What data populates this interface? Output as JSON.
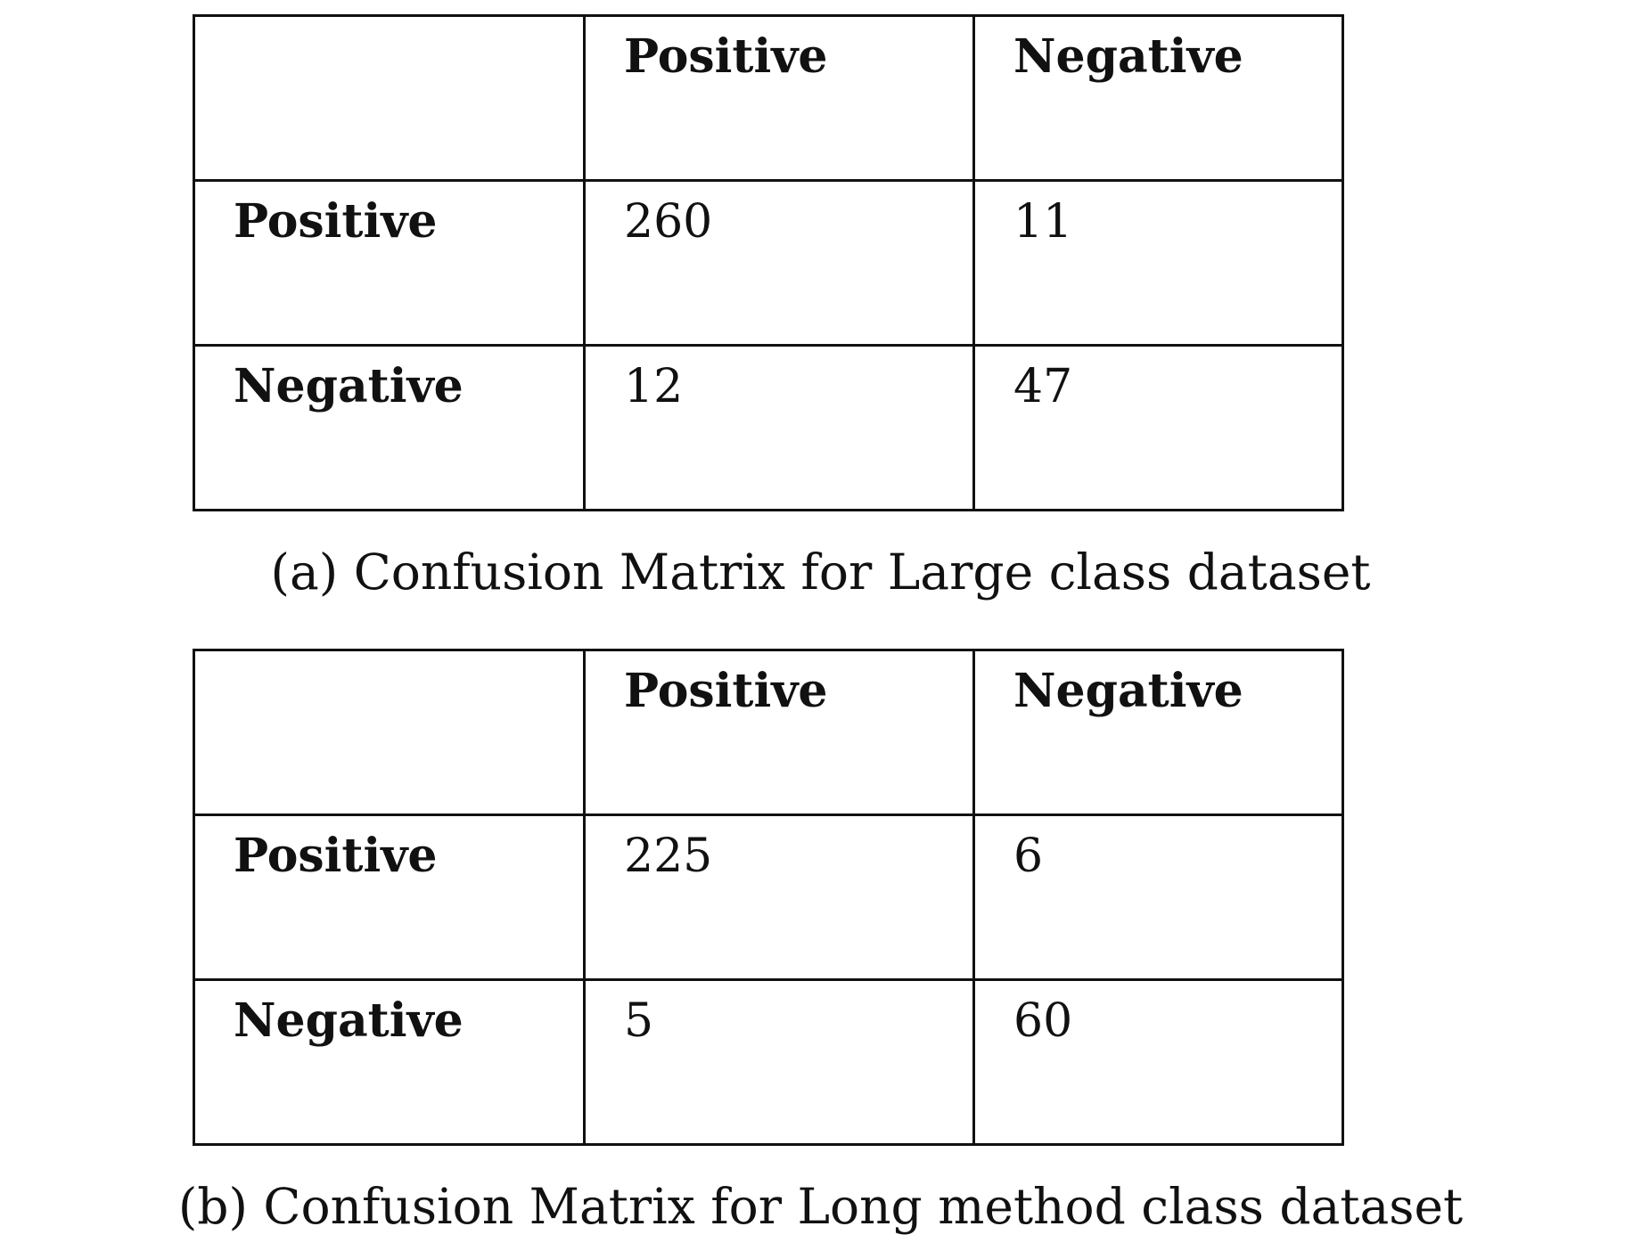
{
  "tables": [
    {
      "header": [
        "Positive",
        "Negative"
      ],
      "rows": [
        [
          "Positive",
          260,
          11
        ],
        [
          "Negative",
          12,
          47
        ]
      ],
      "caption": "(a) Confusion Matrix for Large class dataset"
    },
    {
      "header": [
        "Positive",
        "Negative"
      ],
      "rows": [
        [
          "Positive",
          225,
          6
        ],
        [
          "Negative",
          5,
          60
        ]
      ],
      "caption": "(b) Confusion Matrix for Long method class dataset"
    }
  ]
}
